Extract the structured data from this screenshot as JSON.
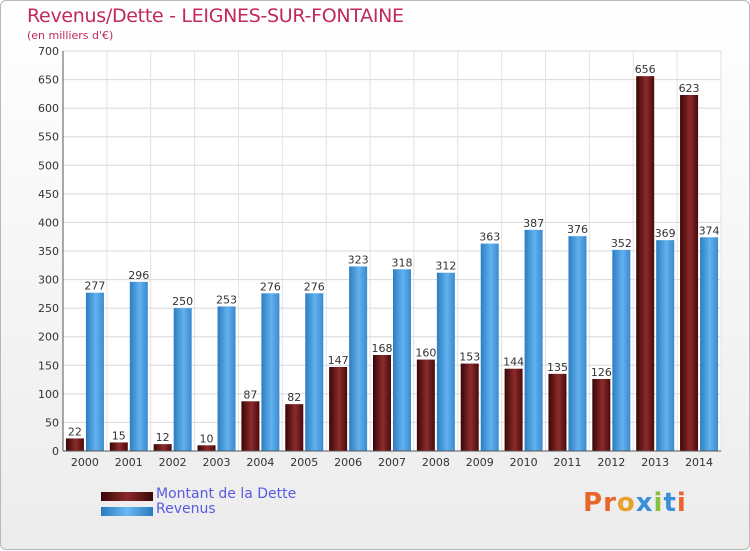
{
  "header": {
    "title": "Revenus/Dette - LEIGNES-SUR-FONTAINE",
    "subtitle": "(en milliers d'€)"
  },
  "colors": {
    "title": "#c0285f",
    "dette": "#7a1a1a",
    "revenus": "#4a9fe0",
    "legend_text": "#5a5ae0"
  },
  "legend": {
    "dette_label": "Montant de la Dette",
    "revenus_label": "Revenus"
  },
  "brand": {
    "letters": [
      "P",
      "r",
      "o",
      "x",
      "i",
      "t",
      "i"
    ],
    "letter_colors": [
      "#e8662a",
      "#e8662a",
      "#e8a02a",
      "#3a8fd8",
      "#8ac040",
      "#3a8fd8",
      "#e8662a"
    ]
  },
  "chart_data": {
    "type": "bar",
    "categories": [
      "2000",
      "2001",
      "2002",
      "2003",
      "2004",
      "2005",
      "2006",
      "2007",
      "2008",
      "2009",
      "2010",
      "2011",
      "2012",
      "2013",
      "2014"
    ],
    "series": [
      {
        "name": "Montant de la Dette",
        "values": [
          22,
          15,
          12,
          10,
          87,
          82,
          147,
          168,
          160,
          153,
          144,
          135,
          126,
          656,
          623
        ]
      },
      {
        "name": "Revenus",
        "values": [
          277,
          296,
          250,
          253,
          276,
          276,
          323,
          318,
          312,
          363,
          387,
          376,
          352,
          369,
          374
        ]
      }
    ],
    "ylim": [
      0,
      700
    ],
    "yticks": [
      0,
      50,
      100,
      150,
      200,
      250,
      300,
      350,
      400,
      450,
      500,
      550,
      600,
      650,
      700
    ],
    "grid": true,
    "legend_position": "bottom-left"
  }
}
